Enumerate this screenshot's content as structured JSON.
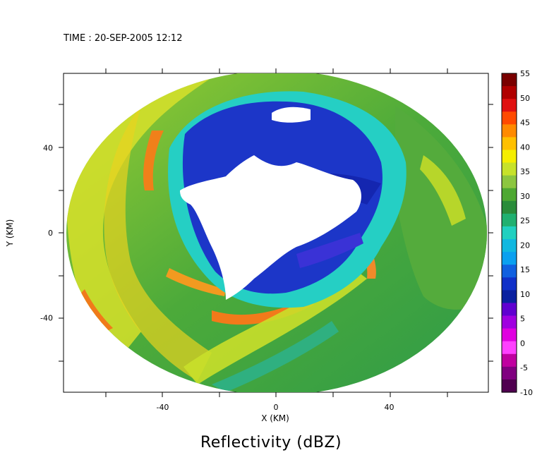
{
  "header": {
    "time_text": "TIME : 20-SEP-2005 12:12"
  },
  "chart_data": {
    "type": "heatmap",
    "title": "Reflectivity (dBZ)",
    "xlabel": "X (KM)",
    "ylabel": "Y (KM)",
    "xlim": [
      -75,
      75
    ],
    "ylim": [
      -75,
      75
    ],
    "x_ticks": [
      -40,
      0,
      40
    ],
    "y_ticks": [
      40,
      0,
      -40
    ],
    "grid": false,
    "colorbar": {
      "label_values": [
        55,
        50,
        45,
        40,
        35,
        30,
        25,
        20,
        15,
        10,
        5,
        0,
        -5,
        -10
      ],
      "colors": [
        "#7a0000",
        "#b00000",
        "#e01010",
        "#ff4a00",
        "#ff8a00",
        "#ffc000",
        "#f5ee00",
        "#c7e22a",
        "#8cc63f",
        "#4ea832",
        "#2a8c3a",
        "#20b070",
        "#20d0c0",
        "#10b8e0",
        "#0aa0f0",
        "#1060e0",
        "#1030c8",
        "#0a20a0",
        "#6000d0",
        "#a000e0",
        "#e000e0",
        "#ff40ff",
        "#c000a0",
        "#800080",
        "#500050"
      ]
    }
  },
  "colors": {
    "blue_hole_edge": "#1a2fbf",
    "cyan": "#25d6c8",
    "green": "#3aa63a",
    "yellow": "#e6e022",
    "orange": "#f08a1a"
  }
}
